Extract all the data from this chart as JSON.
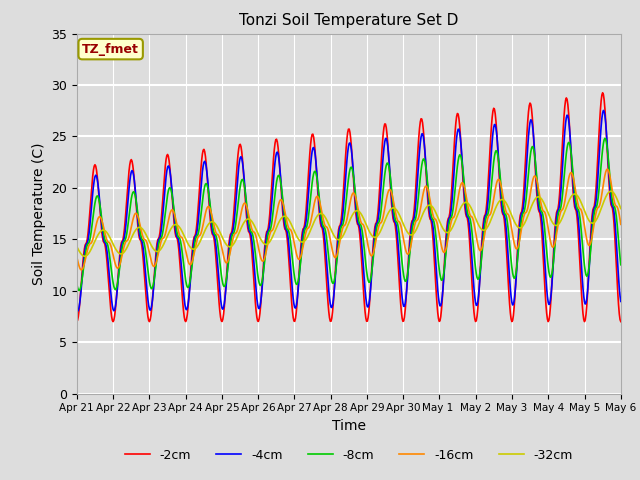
{
  "title": "Tonzi Soil Temperature Set D",
  "xlabel": "Time",
  "ylabel": "Soil Temperature (C)",
  "ylim": [
    0,
    35
  ],
  "yticks": [
    0,
    5,
    10,
    15,
    20,
    25,
    30,
    35
  ],
  "annotation_text": "TZ_fmet",
  "annotation_bg": "#ffffcc",
  "annotation_border": "#999900",
  "annotation_fg": "#990000",
  "series_colors": [
    "#ff0000",
    "#0000ff",
    "#00cc00",
    "#ff8800",
    "#cccc00"
  ],
  "series_labels": [
    "-2cm",
    "-4cm",
    "-8cm",
    "-16cm",
    "-32cm"
  ],
  "series_linewidths": [
    1.2,
    1.2,
    1.2,
    1.2,
    1.2
  ],
  "bg_color": "#dddddd",
  "grid_color": "#ffffff",
  "n_points": 720,
  "date_labels": [
    "Apr 21",
    "Apr 22",
    "Apr 23",
    "Apr 24",
    "Apr 25",
    "Apr 26",
    "Apr 27",
    "Apr 28",
    "Apr 29",
    "Apr 30",
    "May 1 ",
    "May 2",
    "May 3",
    "May 4",
    "May 5",
    "May 6"
  ],
  "date_ticks": [
    0,
    1,
    2,
    3,
    4,
    5,
    6,
    7,
    8,
    9,
    10,
    11,
    12,
    13,
    14,
    15
  ]
}
